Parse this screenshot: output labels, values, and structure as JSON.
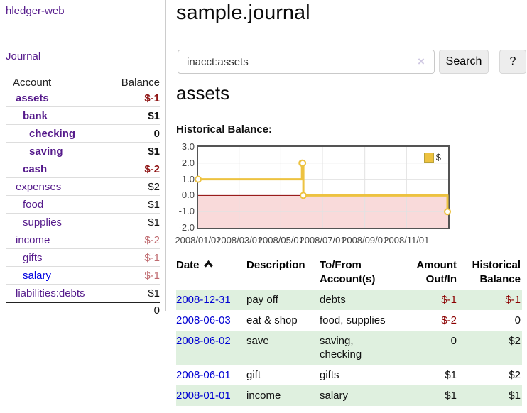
{
  "sidebar": {
    "app_title": "hledger-web",
    "journal_link": "Journal",
    "accounts": {
      "header": {
        "account": "Account",
        "balance": "Balance"
      },
      "rows": [
        {
          "name": "assets",
          "balance": "$-1"
        },
        {
          "name": "bank",
          "balance": "$1"
        },
        {
          "name": "checking",
          "balance": "0"
        },
        {
          "name": "saving",
          "balance": "$1"
        },
        {
          "name": "cash",
          "balance": "$-2"
        },
        {
          "name": "expenses",
          "balance": "$2"
        },
        {
          "name": "food",
          "balance": "$1"
        },
        {
          "name": "supplies",
          "balance": "$1"
        },
        {
          "name": "income",
          "balance": "$-2"
        },
        {
          "name": "gifts",
          "balance": "$-1"
        },
        {
          "name": "salary",
          "balance": "$-1"
        },
        {
          "name": "liabilities:debts",
          "balance": "$1"
        }
      ],
      "total": "0"
    }
  },
  "main": {
    "title": "sample.journal",
    "search": {
      "value": "inacct:assets",
      "clear_icon": "×",
      "search_button": "Search",
      "help_button": "?"
    },
    "heading": "assets",
    "chart_title": "Historical Balance:"
  },
  "chart_data": {
    "type": "line",
    "title": "Historical Balance",
    "series": [
      {
        "name": "$",
        "color": "#edc240",
        "step": true,
        "points": [
          {
            "date": "2008/01/01",
            "x": 0,
            "y": 1.0
          },
          {
            "date": "2008/06/01",
            "x": 152,
            "y": 2.0
          },
          {
            "date": "2008/06/02",
            "x": 153,
            "y": 2.0
          },
          {
            "date": "2008/06/03",
            "x": 154,
            "y": 0.0
          },
          {
            "date": "2008/12/31",
            "x": 365,
            "y": -1.0
          }
        ]
      }
    ],
    "x_ticks": [
      {
        "x": 0,
        "label": "2008/01/01"
      },
      {
        "x": 60,
        "label": "2008/03/01"
      },
      {
        "x": 121,
        "label": "2008/05/01"
      },
      {
        "x": 182,
        "label": "2008/07/01"
      },
      {
        "x": 244,
        "label": "2008/09/01"
      },
      {
        "x": 305,
        "label": "2008/11/01"
      }
    ],
    "y_ticks": [
      3.0,
      2.0,
      1.0,
      0.0,
      -1.0,
      -2.0
    ],
    "xlim": [
      0,
      366
    ],
    "ylim": [
      -2,
      3
    ],
    "grid": true,
    "legend_position": "top-right",
    "colors": {
      "grid": "#e2e2e2",
      "zero_line": "#8b0000",
      "negative_region": "#f9dada",
      "marker_fill": "#ffffff"
    }
  },
  "register": {
    "headers": {
      "date": "Date",
      "description": "Description",
      "accounts": "To/From Account(s)",
      "amount": "Amount Out/In",
      "balance": "Historical Balance"
    },
    "rows": [
      {
        "date": "2008-12-31",
        "description": "pay off",
        "accounts": "debts",
        "amount": "$-1",
        "balance": "$-1"
      },
      {
        "date": "2008-06-03",
        "description": "eat & shop",
        "accounts": "food, supplies",
        "amount": "$-2",
        "balance": "0"
      },
      {
        "date": "2008-06-02",
        "description": "save",
        "accounts": "saving, checking",
        "amount": "0",
        "balance": "$2"
      },
      {
        "date": "2008-06-01",
        "description": "gift",
        "accounts": "gifts",
        "amount": "$1",
        "balance": "$2"
      },
      {
        "date": "2008-01-01",
        "description": "income",
        "accounts": "salary",
        "amount": "$1",
        "balance": "$1"
      }
    ]
  }
}
